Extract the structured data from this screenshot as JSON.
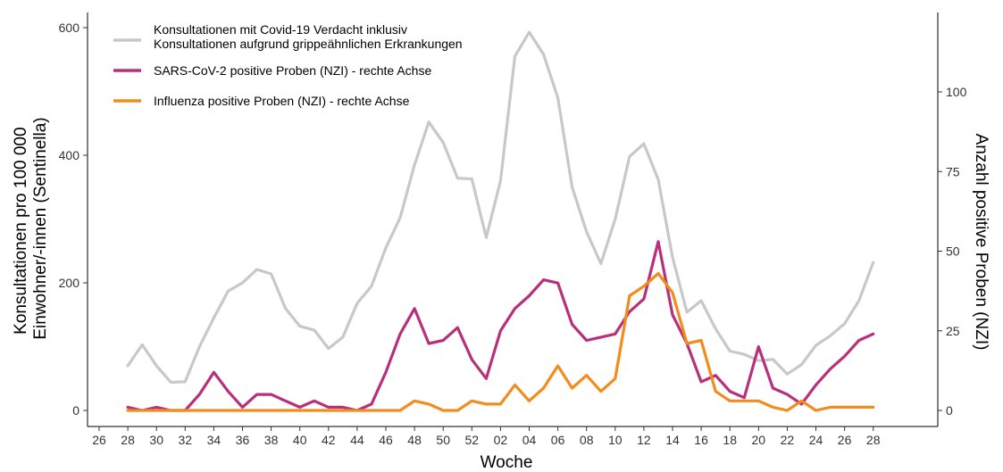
{
  "chart_data": {
    "type": "line",
    "xlabel": "Woche",
    "ylabel_left": [
      "Konsultationen pro 100 000",
      "Einwohner/-innen (Sentinella)"
    ],
    "ylabel_right": "Anzahl positive Proben (NZI)",
    "ylim_left": [
      0,
      600
    ],
    "ylim_right": [
      0,
      120
    ],
    "yticks_left": [
      "0",
      "200",
      "400",
      "600"
    ],
    "yticks_right": [
      "0",
      "25",
      "50",
      "75",
      "100"
    ],
    "x_ticks": [
      "26",
      "28",
      "30",
      "32",
      "34",
      "36",
      "38",
      "40",
      "42",
      "44",
      "46",
      "48",
      "50",
      "52",
      "02",
      "04",
      "06",
      "08",
      "10",
      "12",
      "14",
      "16",
      "18",
      "20",
      "22",
      "24",
      "26",
      "28"
    ],
    "grid": false,
    "legend_position": "top-left",
    "series": [
      {
        "name": "Konsultationen mit Covid-19 Verdacht inklusiv\nKonsultationen aufgrund grippeähnlichen Erkrankungen",
        "label_lines": [
          "Konsultationen mit Covid-19 Verdacht inklusiv",
          "Konsultationen aufgrund grippeähnlichen Erkrankungen"
        ],
        "axis": "left",
        "color": "#c8c8c8",
        "values": [
          70,
          103,
          70,
          44,
          45,
          100,
          145,
          187,
          200,
          221,
          214,
          160,
          132,
          126,
          97,
          115,
          168,
          195,
          255,
          302,
          385,
          452,
          420,
          364,
          363,
          271,
          360,
          555,
          593,
          558,
          490,
          350,
          280,
          230,
          300,
          398,
          418,
          362,
          240,
          154,
          172,
          128,
          93,
          88,
          78,
          80,
          57,
          72,
          102,
          117,
          136,
          172,
          232
        ]
      },
      {
        "name": "SARS-CoV-2 positive Proben (NZI) - rechte Achse",
        "label_lines": [
          "SARS-CoV-2 positive Proben (NZI) - rechte Achse"
        ],
        "axis": "right",
        "color": "#b8307c",
        "values": [
          1,
          0,
          1,
          0,
          0,
          5,
          12,
          6,
          1,
          5,
          5,
          3,
          1,
          3,
          1,
          1,
          0,
          2,
          12,
          24,
          32,
          21,
          22,
          26,
          16,
          10,
          25,
          32,
          36,
          41,
          40,
          27,
          22,
          23,
          24,
          31,
          35,
          53,
          30,
          21,
          9,
          11,
          6,
          4,
          20,
          7,
          5,
          2,
          8,
          13,
          17,
          22,
          24
        ]
      },
      {
        "name": "Influenza positive Proben (NZI) - rechte Achse",
        "label_lines": [
          "Influenza positive Proben (NZI) - rechte Achse"
        ],
        "axis": "right",
        "color": "#f28c1e",
        "values": [
          0,
          0,
          0,
          0,
          0,
          0,
          0,
          0,
          0,
          0,
          0,
          0,
          0,
          0,
          0,
          0,
          0,
          0,
          0,
          0,
          3,
          2,
          0,
          0,
          3,
          2,
          2,
          8,
          3,
          7,
          14,
          7,
          11,
          6,
          10,
          36,
          39,
          43,
          37,
          21,
          22,
          6,
          3,
          3,
          3,
          1,
          0,
          3,
          0,
          1,
          1,
          1,
          1
        ]
      }
    ]
  }
}
